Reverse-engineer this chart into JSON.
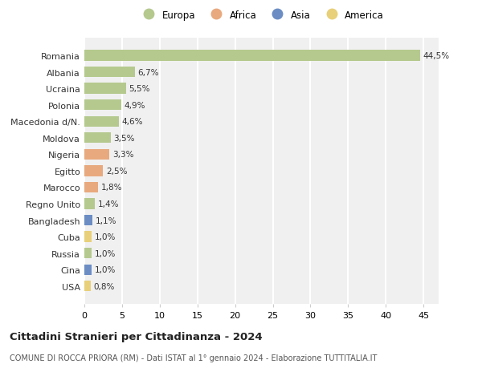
{
  "countries": [
    "Romania",
    "Albania",
    "Ucraina",
    "Polonia",
    "Macedonia d/N.",
    "Moldova",
    "Nigeria",
    "Egitto",
    "Marocco",
    "Regno Unito",
    "Bangladesh",
    "Cuba",
    "Russia",
    "Cina",
    "USA"
  ],
  "values": [
    44.5,
    6.7,
    5.5,
    4.9,
    4.6,
    3.5,
    3.3,
    2.5,
    1.8,
    1.4,
    1.1,
    1.0,
    1.0,
    1.0,
    0.8
  ],
  "labels": [
    "44,5%",
    "6,7%",
    "5,5%",
    "4,9%",
    "4,6%",
    "3,5%",
    "3,3%",
    "2,5%",
    "1,8%",
    "1,4%",
    "1,1%",
    "1,0%",
    "1,0%",
    "1,0%",
    "0,8%"
  ],
  "continents": [
    "Europa",
    "Europa",
    "Europa",
    "Europa",
    "Europa",
    "Europa",
    "Africa",
    "Africa",
    "Africa",
    "Europa",
    "Asia",
    "America",
    "Europa",
    "Asia",
    "America"
  ],
  "continent_colors": {
    "Europa": "#b5c98e",
    "Africa": "#e8a97e",
    "Asia": "#6b8dc4",
    "America": "#e8d07a"
  },
  "legend_order": [
    "Europa",
    "Africa",
    "Asia",
    "America"
  ],
  "title": "Cittadini Stranieri per Cittadinanza - 2024",
  "subtitle": "COMUNE DI ROCCA PRIORA (RM) - Dati ISTAT al 1° gennaio 2024 - Elaborazione TUTTITALIA.IT",
  "xlim": [
    0,
    47
  ],
  "xticks": [
    0,
    5,
    10,
    15,
    20,
    25,
    30,
    35,
    40,
    45
  ],
  "background_color": "#ffffff",
  "plot_background": "#f0f0f0",
  "grid_color": "#ffffff",
  "bar_height": 0.65
}
